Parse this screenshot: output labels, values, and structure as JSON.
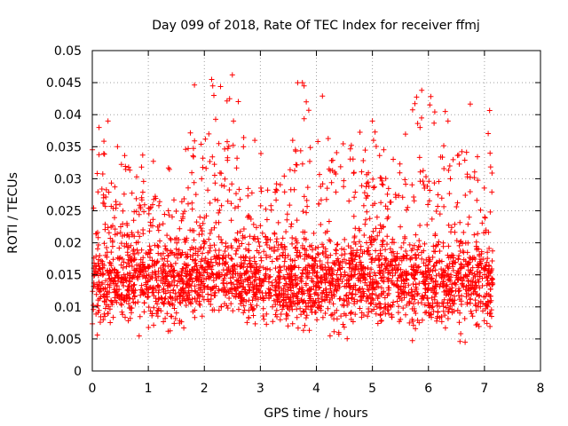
{
  "chart_data": {
    "type": "scatter",
    "title": "Day 099 of 2018, Rate Of TEC Index for receiver ffmj",
    "xlabel": "GPS time / hours",
    "ylabel": "ROTI / TECUs",
    "xlim": [
      0,
      8
    ],
    "ylim": [
      0,
      0.05
    ],
    "xticks": [
      "0",
      "1",
      "2",
      "3",
      "4",
      "5",
      "6",
      "7",
      "8"
    ],
    "yticks": [
      "0",
      "0.005",
      "0.01",
      "0.015",
      "0.02",
      "0.025",
      "0.03",
      "0.035",
      "0.04",
      "0.045",
      "0.05"
    ],
    "grid": true,
    "marker": "+",
    "color": "#ff0000",
    "series": [
      {
        "name": "ROTI",
        "segments": [
          {
            "x_start": 0.0,
            "x_end": 0.35,
            "y_min": 0.005,
            "y_max": 0.024,
            "peak_max": 0.039
          },
          {
            "x_start": 0.35,
            "x_end": 0.62,
            "y_min": 0.006,
            "y_max": 0.022,
            "peak_max": 0.035
          },
          {
            "x_start": 0.62,
            "x_end": 1.65,
            "y_min": 0.005,
            "y_max": 0.024,
            "peak_max": 0.034
          },
          {
            "x_start": 1.65,
            "x_end": 2.7,
            "y_min": 0.006,
            "y_max": 0.025,
            "peak_max": 0.046
          },
          {
            "x_start": 2.7,
            "x_end": 3.6,
            "y_min": 0.005,
            "y_max": 0.024,
            "peak_max": 0.037
          },
          {
            "x_start": 3.6,
            "x_end": 4.65,
            "y_min": 0.004,
            "y_max": 0.025,
            "peak_max": 0.045
          },
          {
            "x_start": 4.65,
            "x_end": 5.7,
            "y_min": 0.004,
            "y_max": 0.026,
            "peak_max": 0.039
          },
          {
            "x_start": 5.7,
            "x_end": 7.15,
            "y_min": 0.004,
            "y_max": 0.025,
            "peak_max": 0.044
          }
        ],
        "notable_points": [
          [
            0.12,
            0.038
          ],
          [
            0.28,
            0.039
          ],
          [
            0.45,
            0.035
          ],
          [
            2.08,
            0.037
          ],
          [
            2.13,
            0.0455
          ],
          [
            2.15,
            0.0445
          ],
          [
            2.17,
            0.043
          ],
          [
            2.45,
            0.0425
          ],
          [
            2.5,
            0.0462
          ],
          [
            2.52,
            0.039
          ],
          [
            2.9,
            0.036
          ],
          [
            3.75,
            0.045
          ],
          [
            3.78,
            0.0445
          ],
          [
            3.82,
            0.042
          ],
          [
            5.0,
            0.039
          ],
          [
            5.02,
            0.036
          ],
          [
            5.85,
            0.038
          ],
          [
            5.88,
            0.0438
          ],
          [
            6.3,
            0.0405
          ],
          [
            6.35,
            0.039
          ]
        ]
      }
    ]
  }
}
